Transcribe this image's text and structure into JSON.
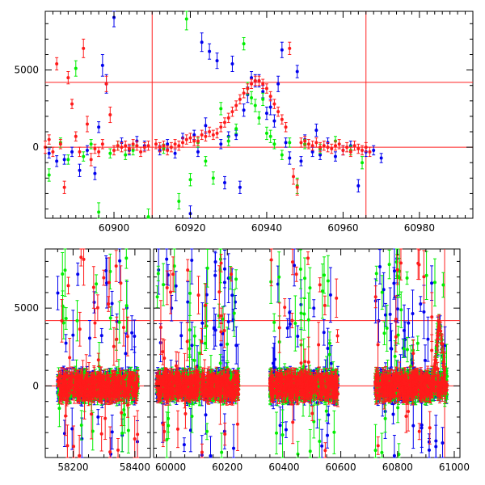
{
  "chart_data": [
    {
      "type": "scatter",
      "panel": "top",
      "title": "",
      "xlabel": "",
      "ylabel": "",
      "xlim": [
        60882,
        60994
      ],
      "ylim": [
        -4600,
        8800
      ],
      "xticks": [
        60900,
        60920,
        60940,
        60960,
        60980
      ],
      "yticks": [
        0,
        5000
      ],
      "grid": false,
      "reference_lines": {
        "horizontal_y": [
          4200,
          0
        ],
        "vertical_x": [
          60910,
          60966
        ]
      },
      "colors": {
        "blue": "#0000ee",
        "green": "#00ee00",
        "red": "#ff1a1a",
        "reference": "#ff2020"
      },
      "series": [
        {
          "color": "blue",
          "points": [
            [
              60883,
              -400,
              300
            ],
            [
              60885,
              -900,
              350
            ],
            [
              60887,
              -800,
              300
            ],
            [
              60889,
              -300,
              300
            ],
            [
              60891,
              -1500,
              400
            ],
            [
              60893,
              -200,
              300
            ],
            [
              60895,
              -1700,
              400
            ],
            [
              60896,
              1300,
              350
            ],
            [
              60897,
              5300,
              700
            ],
            [
              60898,
              4100,
              600
            ],
            [
              60900,
              8400,
              600
            ],
            [
              60902,
              300,
              300
            ],
            [
              60904,
              -200,
              300
            ],
            [
              60906,
              400,
              300
            ],
            [
              60908,
              100,
              300
            ],
            [
              60912,
              -200,
              300
            ],
            [
              60914,
              200,
              300
            ],
            [
              60916,
              -400,
              300
            ],
            [
              60918,
              600,
              300
            ],
            [
              60920,
              -4300,
              500
            ],
            [
              60921,
              800,
              300
            ],
            [
              60922,
              -300,
              300
            ],
            [
              60923,
              6800,
              600
            ],
            [
              60924,
              1400,
              500
            ],
            [
              60925,
              6200,
              500
            ],
            [
              60927,
              5600,
              500
            ],
            [
              60928,
              200,
              300
            ],
            [
              60929,
              -2300,
              400
            ],
            [
              60930,
              700,
              300
            ],
            [
              60931,
              5400,
              500
            ],
            [
              60932,
              800,
              300
            ],
            [
              60933,
              -2600,
              400
            ],
            [
              60934,
              2400,
              400
            ],
            [
              60935,
              3400,
              500
            ],
            [
              60936,
              4500,
              400
            ],
            [
              60937,
              4300,
              400
            ],
            [
              60938,
              4300,
              400
            ],
            [
              60939,
              3600,
              400
            ],
            [
              60940,
              2200,
              400
            ],
            [
              60941,
              2600,
              500
            ],
            [
              60942,
              1700,
              400
            ],
            [
              60943,
              4100,
              500
            ],
            [
              60944,
              6300,
              500
            ],
            [
              60945,
              300,
              300
            ],
            [
              60946,
              -700,
              400
            ],
            [
              60948,
              4900,
              400
            ],
            [
              60949,
              -900,
              300
            ],
            [
              60950,
              500,
              300
            ],
            [
              60952,
              -300,
              300
            ],
            [
              60953,
              1100,
              400
            ],
            [
              60954,
              -500,
              300
            ],
            [
              60956,
              300,
              300
            ],
            [
              60958,
              -600,
              300
            ],
            [
              60960,
              -200,
              300
            ],
            [
              60962,
              100,
              300
            ],
            [
              60964,
              -2500,
              400
            ],
            [
              60966,
              -300,
              300
            ],
            [
              60968,
              -200,
              300
            ],
            [
              60970,
              -700,
              300
            ]
          ]
        },
        {
          "color": "green",
          "points": [
            [
              60883,
              -1800,
              400
            ],
            [
              60886,
              300,
              300
            ],
            [
              60888,
              -800,
              300
            ],
            [
              60890,
              5100,
              500
            ],
            [
              60892,
              -600,
              300
            ],
            [
              60894,
              200,
              300
            ],
            [
              60896,
              -4200,
              600
            ],
            [
              60899,
              -400,
              300
            ],
            [
              60901,
              100,
              300
            ],
            [
              60903,
              -500,
              300
            ],
            [
              60905,
              -200,
              300
            ],
            [
              60909,
              -4500,
              500
            ],
            [
              60913,
              -100,
              300
            ],
            [
              60917,
              -3500,
              500
            ],
            [
              60919,
              8300,
              700
            ],
            [
              60920,
              -2100,
              400
            ],
            [
              60922,
              300,
              300
            ],
            [
              60924,
              -900,
              300
            ],
            [
              60926,
              -2000,
              400
            ],
            [
              60928,
              2500,
              400
            ],
            [
              60930,
              400,
              300
            ],
            [
              60932,
              1200,
              300
            ],
            [
              60934,
              6700,
              400
            ],
            [
              60935,
              3800,
              400
            ],
            [
              60936,
              3200,
              400
            ],
            [
              60937,
              2700,
              400
            ],
            [
              60938,
              1900,
              400
            ],
            [
              60939,
              3100,
              400
            ],
            [
              60940,
              900,
              400
            ],
            [
              60941,
              700,
              400
            ],
            [
              60942,
              200,
              300
            ],
            [
              60944,
              -500,
              300
            ],
            [
              60946,
              300,
              300
            ],
            [
              60948,
              -2500,
              500
            ],
            [
              60950,
              200,
              300
            ],
            [
              60954,
              -100,
              300
            ],
            [
              60958,
              400,
              300
            ],
            [
              60962,
              -200,
              300
            ],
            [
              60965,
              -1000,
              400
            ]
          ]
        },
        {
          "color": "red",
          "points": [
            [
              60882,
              0,
              400
            ],
            [
              60883,
              500,
              300
            ],
            [
              60884,
              -300,
              300
            ],
            [
              60885,
              5400,
              400
            ],
            [
              60886,
              200,
              300
            ],
            [
              60887,
              -2600,
              400
            ],
            [
              60888,
              4500,
              400
            ],
            [
              60889,
              2800,
              300
            ],
            [
              60890,
              700,
              300
            ],
            [
              60891,
              -300,
              300
            ],
            [
              60892,
              6400,
              600
            ],
            [
              60893,
              1500,
              500
            ],
            [
              60894,
              -800,
              400
            ],
            [
              60895,
              -100,
              300
            ],
            [
              60896,
              -300,
              300
            ],
            [
              60897,
              200,
              300
            ],
            [
              60898,
              4100,
              500
            ],
            [
              60899,
              2100,
              500
            ],
            [
              60900,
              -200,
              300
            ],
            [
              60901,
              100,
              300
            ],
            [
              60902,
              0,
              300
            ],
            [
              60903,
              100,
              300
            ],
            [
              60904,
              -100,
              300
            ],
            [
              60905,
              200,
              300
            ],
            [
              60906,
              100,
              300
            ],
            [
              60907,
              -300,
              300
            ],
            [
              60908,
              0,
              300
            ],
            [
              60909,
              100,
              300
            ],
            [
              60911,
              200,
              300
            ],
            [
              60912,
              0,
              300
            ],
            [
              60913,
              100,
              300
            ],
            [
              60914,
              -200,
              300
            ],
            [
              60915,
              0,
              300
            ],
            [
              60916,
              200,
              300
            ],
            [
              60917,
              100,
              300
            ],
            [
              60918,
              300,
              300
            ],
            [
              60919,
              500,
              300
            ],
            [
              60920,
              600,
              300
            ],
            [
              60921,
              400,
              300
            ],
            [
              60922,
              400,
              300
            ],
            [
              60923,
              800,
              300
            ],
            [
              60924,
              700,
              300
            ],
            [
              60925,
              1000,
              300
            ],
            [
              60926,
              800,
              300
            ],
            [
              60927,
              900,
              300
            ],
            [
              60928,
              1300,
              300
            ],
            [
              60929,
              1600,
              300
            ],
            [
              60930,
              1900,
              300
            ],
            [
              60931,
              2300,
              300
            ],
            [
              60932,
              2700,
              300
            ],
            [
              60933,
              3100,
              300
            ],
            [
              60934,
              3500,
              300
            ],
            [
              60935,
              3800,
              300
            ],
            [
              60936,
              4100,
              300
            ],
            [
              60937,
              4300,
              300
            ],
            [
              60938,
              4300,
              300
            ],
            [
              60939,
              4100,
              300
            ],
            [
              60940,
              3800,
              300
            ],
            [
              60941,
              3300,
              300
            ],
            [
              60942,
              2800,
              300
            ],
            [
              60943,
              2300,
              300
            ],
            [
              60944,
              1800,
              300
            ],
            [
              60945,
              1300,
              300
            ],
            [
              60946,
              6400,
              400
            ],
            [
              60947,
              -1900,
              500
            ],
            [
              60948,
              -2600,
              500
            ],
            [
              60949,
              300,
              300
            ],
            [
              60950,
              400,
              300
            ],
            [
              60951,
              200,
              300
            ],
            [
              60952,
              100,
              300
            ],
            [
              60953,
              300,
              300
            ],
            [
              60954,
              0,
              300
            ],
            [
              60955,
              100,
              300
            ],
            [
              60956,
              0,
              300
            ],
            [
              60957,
              -100,
              300
            ],
            [
              60958,
              100,
              300
            ],
            [
              60959,
              200,
              300
            ],
            [
              60960,
              -200,
              300
            ],
            [
              60961,
              0,
              300
            ],
            [
              60962,
              -300,
              300
            ],
            [
              60963,
              100,
              300
            ],
            [
              60964,
              -100,
              300
            ],
            [
              60965,
              -200,
              300
            ],
            [
              60966,
              0,
              300
            ],
            [
              60967,
              -300,
              300
            ]
          ]
        }
      ]
    },
    {
      "type": "scatter",
      "panel": "bottom",
      "title": "",
      "xlabel": "",
      "ylabel": "",
      "xlim": [
        58110,
        61020
      ],
      "ylim": [
        -4600,
        8800
      ],
      "xticks": [
        58200,
        58400,
        60000,
        60200,
        60400,
        60600,
        60800,
        61000
      ],
      "yticks": [
        0,
        5000
      ],
      "grid": false,
      "axis_break": {
        "after": 58450,
        "resume": 59940
      },
      "reference_lines": {
        "horizontal_y": [
          4200,
          0
        ],
        "vertical_x": [
          60966
        ]
      },
      "colors": {
        "blue": "#0000ee",
        "green": "#00ee00",
        "red": "#ff1a1a",
        "reference": "#ff2020"
      },
      "observing_seasons": [
        [
          58150,
          58410
        ],
        [
          59950,
          60240
        ],
        [
          60350,
          60590
        ],
        [
          60720,
          60975
        ]
      ],
      "scatter_envelope": {
        "core": [
          -700,
          700
        ],
        "outliers": [
          -4500,
          8300
        ]
      },
      "series_colors": [
        "blue",
        "green",
        "red"
      ],
      "highlight": {
        "x": [
          60925,
          60970
        ],
        "peak": 4300
      }
    }
  ]
}
